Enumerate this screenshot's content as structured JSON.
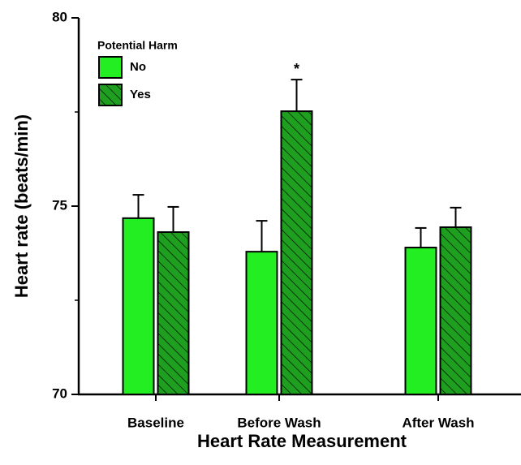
{
  "chart_data": {
    "type": "bar",
    "xlabel": "Heart Rate Measurement",
    "ylabel": "Heart rate (beats/min)",
    "categories": [
      "Baseline",
      "Before Wash",
      "After Wash"
    ],
    "legend_title": "Potential Harm",
    "series": [
      {
        "name": "No",
        "color": "#22ee22",
        "hatch": false,
        "values": [
          74.68,
          73.79,
          73.9
        ],
        "errors": [
          0.62,
          0.82,
          0.52
        ]
      },
      {
        "name": "Yes",
        "color": "#1f9f1f",
        "hatch": true,
        "values": [
          74.31,
          77.52,
          74.44
        ],
        "errors": [
          0.67,
          0.84,
          0.52
        ]
      }
    ],
    "annotations": [
      {
        "text": "*",
        "series": 1,
        "category": 1
      }
    ],
    "ylim": [
      70,
      80
    ],
    "yticks": [
      70,
      75,
      80
    ],
    "yminor": [
      72.5,
      77.5
    ],
    "grid": false,
    "legend": "upper left"
  }
}
